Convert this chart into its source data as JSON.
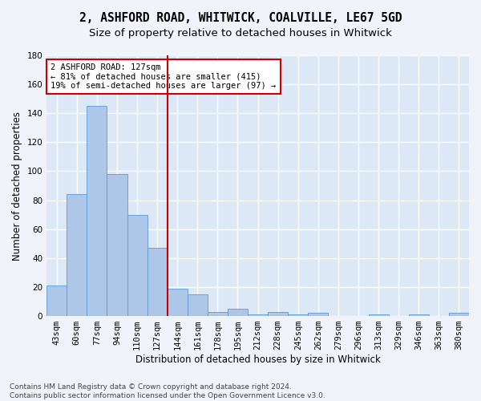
{
  "title_line1": "2, ASHFORD ROAD, WHITWICK, COALVILLE, LE67 5GD",
  "title_line2": "Size of property relative to detached houses in Whitwick",
  "xlabel": "Distribution of detached houses by size in Whitwick",
  "ylabel": "Number of detached properties",
  "bar_labels": [
    "43sqm",
    "60sqm",
    "77sqm",
    "94sqm",
    "110sqm",
    "127sqm",
    "144sqm",
    "161sqm",
    "178sqm",
    "195sqm",
    "212sqm",
    "228sqm",
    "245sqm",
    "262sqm",
    "279sqm",
    "296sqm",
    "313sqm",
    "329sqm",
    "346sqm",
    "363sqm",
    "380sqm"
  ],
  "bar_values": [
    21,
    84,
    145,
    98,
    70,
    47,
    19,
    15,
    3,
    5,
    1,
    3,
    1,
    2,
    0,
    0,
    1,
    0,
    1,
    0,
    2
  ],
  "highlight_index": 5,
  "bar_color": "#aec6e8",
  "bar_edge_color": "#5b9bd5",
  "highlight_line_color": "#cc0000",
  "annotation_box_text": "2 ASHFORD ROAD: 127sqm\n← 81% of detached houses are smaller (415)\n19% of semi-detached houses are larger (97) →",
  "annotation_box_color": "#cc0000",
  "ylim": [
    0,
    180
  ],
  "yticks": [
    0,
    20,
    40,
    60,
    80,
    100,
    120,
    140,
    160,
    180
  ],
  "footer_line1": "Contains HM Land Registry data © Crown copyright and database right 2024.",
  "footer_line2": "Contains public sector information licensed under the Open Government Licence v3.0.",
  "background_color": "#dce8f5",
  "fig_background_color": "#f0f4fa",
  "grid_color": "#ffffff",
  "title_fontsize": 10.5,
  "subtitle_fontsize": 9.5,
  "axis_label_fontsize": 8.5,
  "tick_fontsize": 7.5,
  "annotation_fontsize": 7.5,
  "footer_fontsize": 6.5
}
